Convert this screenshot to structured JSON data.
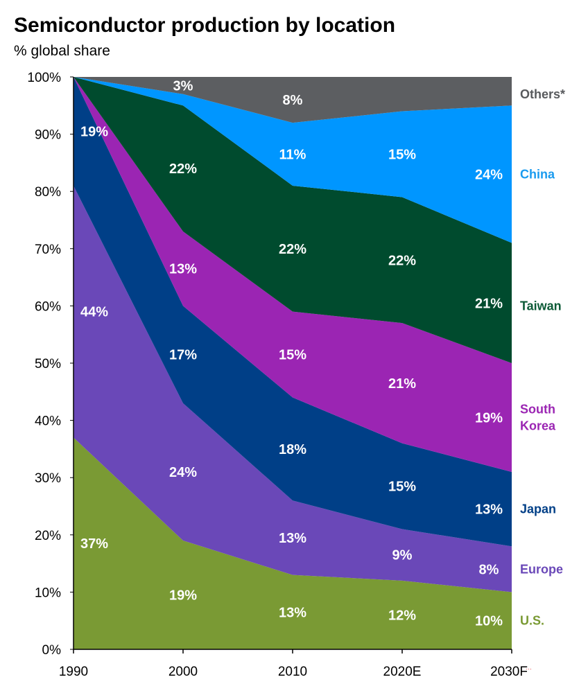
{
  "title": "Semiconductor production by location",
  "subtitle": "% global share",
  "footnote_mark": "…",
  "chart_data": {
    "type": "area",
    "stacked": true,
    "title": "Semiconductor production by location",
    "ylabel": "% global share",
    "ylim": [
      0,
      100
    ],
    "yticks": [
      "0%",
      "10%",
      "20%",
      "30%",
      "40%",
      "50%",
      "60%",
      "70%",
      "80%",
      "90%",
      "100%"
    ],
    "categories": [
      "1990",
      "2000",
      "2010",
      "2020E",
      "2030F"
    ],
    "series": [
      {
        "name": "U.S.",
        "legend": [
          "U.S."
        ],
        "color": "#7a9a34",
        "legend_color": "#7a9a34",
        "values": [
          37,
          19,
          13,
          12,
          10
        ],
        "labels": [
          "37%",
          "19%",
          "13%",
          "12%",
          "10%"
        ]
      },
      {
        "name": "Europe",
        "legend": [
          "Europe"
        ],
        "color": "#6a48b8",
        "legend_color": "#6a48b8",
        "values": [
          44,
          24,
          13,
          9,
          8
        ],
        "labels": [
          "44%",
          "24%",
          "13%",
          "9%",
          "8%"
        ]
      },
      {
        "name": "Japan",
        "legend": [
          "Japan"
        ],
        "color": "#003f87",
        "legend_color": "#003f87",
        "values": [
          19,
          17,
          18,
          15,
          13
        ],
        "labels": [
          "19%",
          "17%",
          "18%",
          "15%",
          "13%"
        ]
      },
      {
        "name": "South Korea",
        "legend": [
          "South",
          "Korea"
        ],
        "color": "#9b25b3",
        "legend_color": "#9b25b3",
        "values": [
          0,
          13,
          15,
          21,
          19
        ],
        "labels": [
          "",
          "13%",
          "15%",
          "21%",
          "19%"
        ]
      },
      {
        "name": "Taiwan",
        "legend": [
          "Taiwan"
        ],
        "color": "#004b2e",
        "legend_color": "#0b5a36",
        "values": [
          0,
          22,
          22,
          22,
          21
        ],
        "labels": [
          "",
          "22%",
          "22%",
          "22%",
          "21%"
        ]
      },
      {
        "name": "China",
        "legend": [
          "China"
        ],
        "color": "#0096ff",
        "legend_color": "#1a9bef",
        "values": [
          0,
          2,
          11,
          15,
          24
        ],
        "labels": [
          "",
          "",
          "11%",
          "15%",
          "24%"
        ]
      },
      {
        "name": "Others*",
        "legend": [
          "Others*"
        ],
        "color": "#5c5e61",
        "legend_color": "#585a5d",
        "values": [
          0,
          3,
          8,
          6,
          5
        ],
        "labels": [
          "",
          "3%",
          "8%",
          "",
          ""
        ]
      }
    ]
  }
}
